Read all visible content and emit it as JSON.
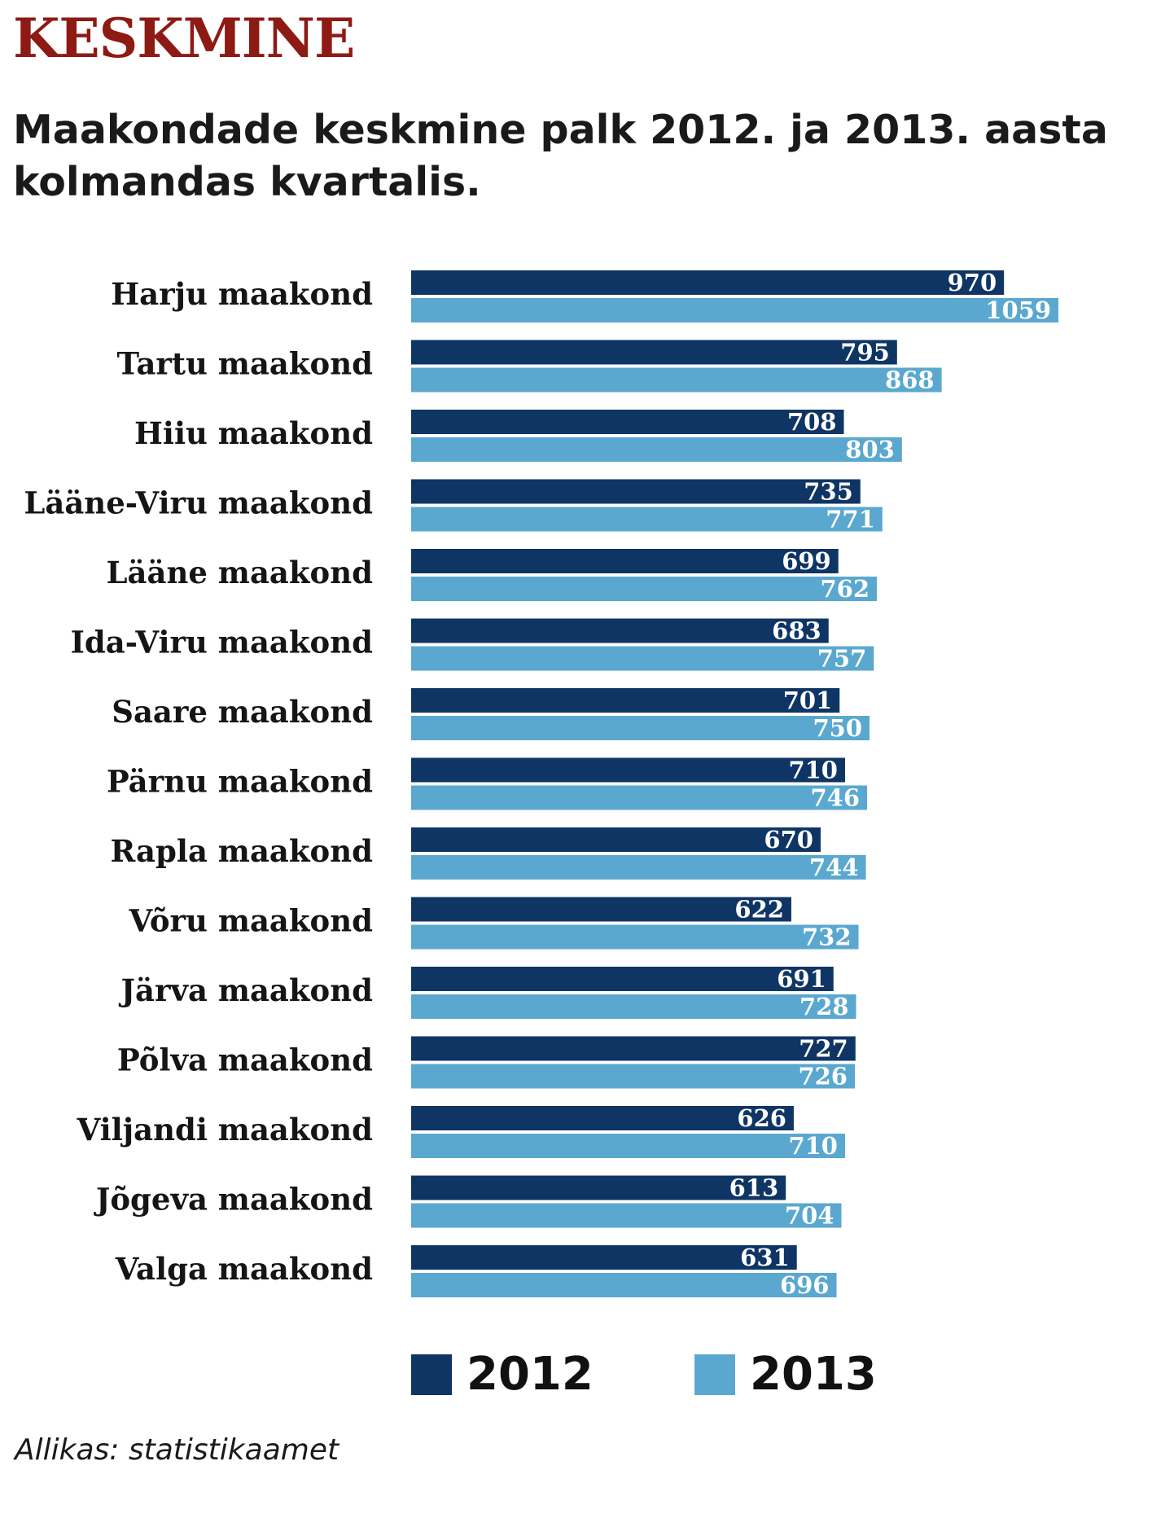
{
  "header": {
    "kicker": "KESKMINE",
    "title": "Maakondade keskmine palk 2012. ja 2013. aasta kolmandas kvartalis."
  },
  "source": "Allikas: statistikaamet",
  "colors": {
    "2012": "#0f3564",
    "2013": "#5aa8cf",
    "kicker": "#8e1a14"
  },
  "chart_data": {
    "type": "bar",
    "orientation": "horizontal",
    "categories": [
      "Harju maakond",
      "Tartu maakond",
      "Hiiu maakond",
      "Lääne-Viru maakond",
      "Lääne maakond",
      "Ida-Viru maakond",
      "Saare maakond",
      "Pärnu maakond",
      "Rapla maakond",
      "Võru maakond",
      "Järva maakond",
      "Põlva maakond",
      "Viljandi maakond",
      "Jõgeva maakond",
      "Valga maakond"
    ],
    "series": [
      {
        "name": "2012",
        "values": [
          970,
          795,
          708,
          735,
          699,
          683,
          701,
          710,
          670,
          622,
          691,
          727,
          626,
          613,
          631
        ]
      },
      {
        "name": "2013",
        "values": [
          1059,
          868,
          803,
          771,
          762,
          757,
          750,
          746,
          744,
          732,
          728,
          726,
          710,
          704,
          696
        ]
      }
    ],
    "xlim": [
      0,
      1059
    ],
    "grid": false,
    "legend_position": "bottom"
  }
}
